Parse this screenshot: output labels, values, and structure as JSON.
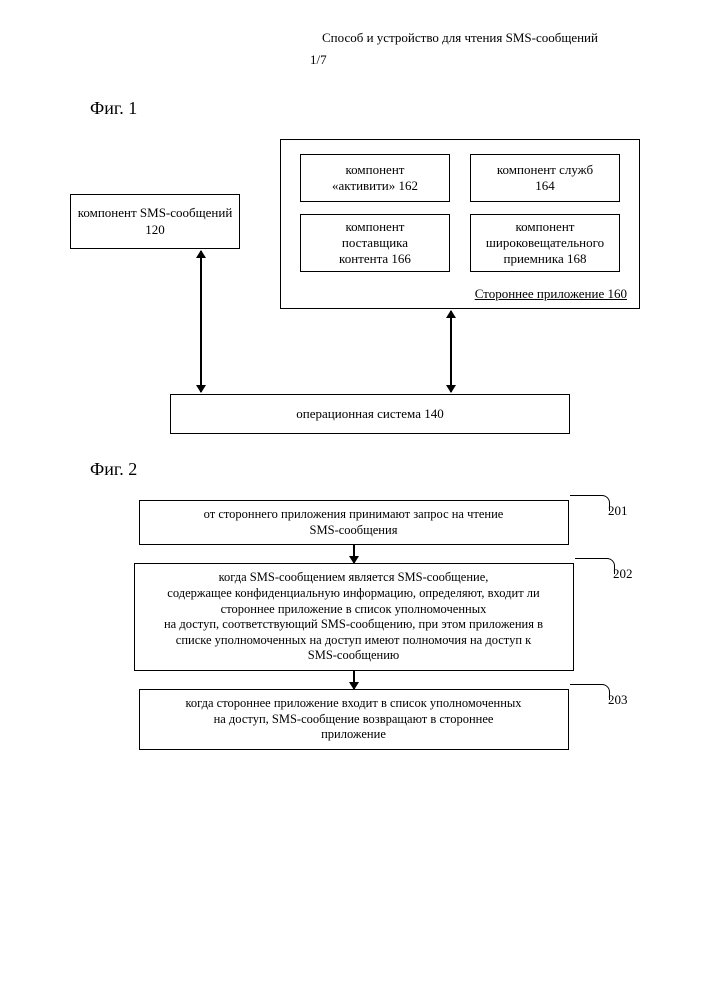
{
  "header": {
    "title": "Способ и устройство для чтения SMS-сообщений",
    "page": "1/7"
  },
  "fig1": {
    "label": "Фиг. 1",
    "sms_component": "компонент SMS-сообщений\n120",
    "app_outer_label": "Стороннее приложение 160",
    "comp_activity": "компонент\n«активити» 162",
    "comp_services": "компонент служб\n164",
    "comp_content": "компонент\nпоставщика\nконтента 166",
    "comp_broadcast": "компонент\nшироковещательного\nприемника 168",
    "os": "операционная система 140"
  },
  "fig2": {
    "label": "Фиг. 2",
    "step201": {
      "num": "201",
      "text": "от стороннего приложения принимают запрос на чтение\nSMS-сообщения"
    },
    "step202": {
      "num": "202",
      "text": "когда SMS-сообщением является SMS-сообщение,\nсодержащее конфиденциальную информацию, определяют, входит ли\nстороннее приложение в список уполномоченных\nна доступ, соответствующий SMS-сообщению, при этом приложения в\nсписке уполномоченных на доступ имеют полномочия на доступ к\nSMS-сообщению"
    },
    "step203": {
      "num": "203",
      "text": "когда стороннее приложение входит в список уполномоченных\nна доступ, SMS-сообщение возвращают в стороннее\nприложение"
    }
  },
  "colors": {
    "stroke": "#000000",
    "background": "#ffffff"
  }
}
